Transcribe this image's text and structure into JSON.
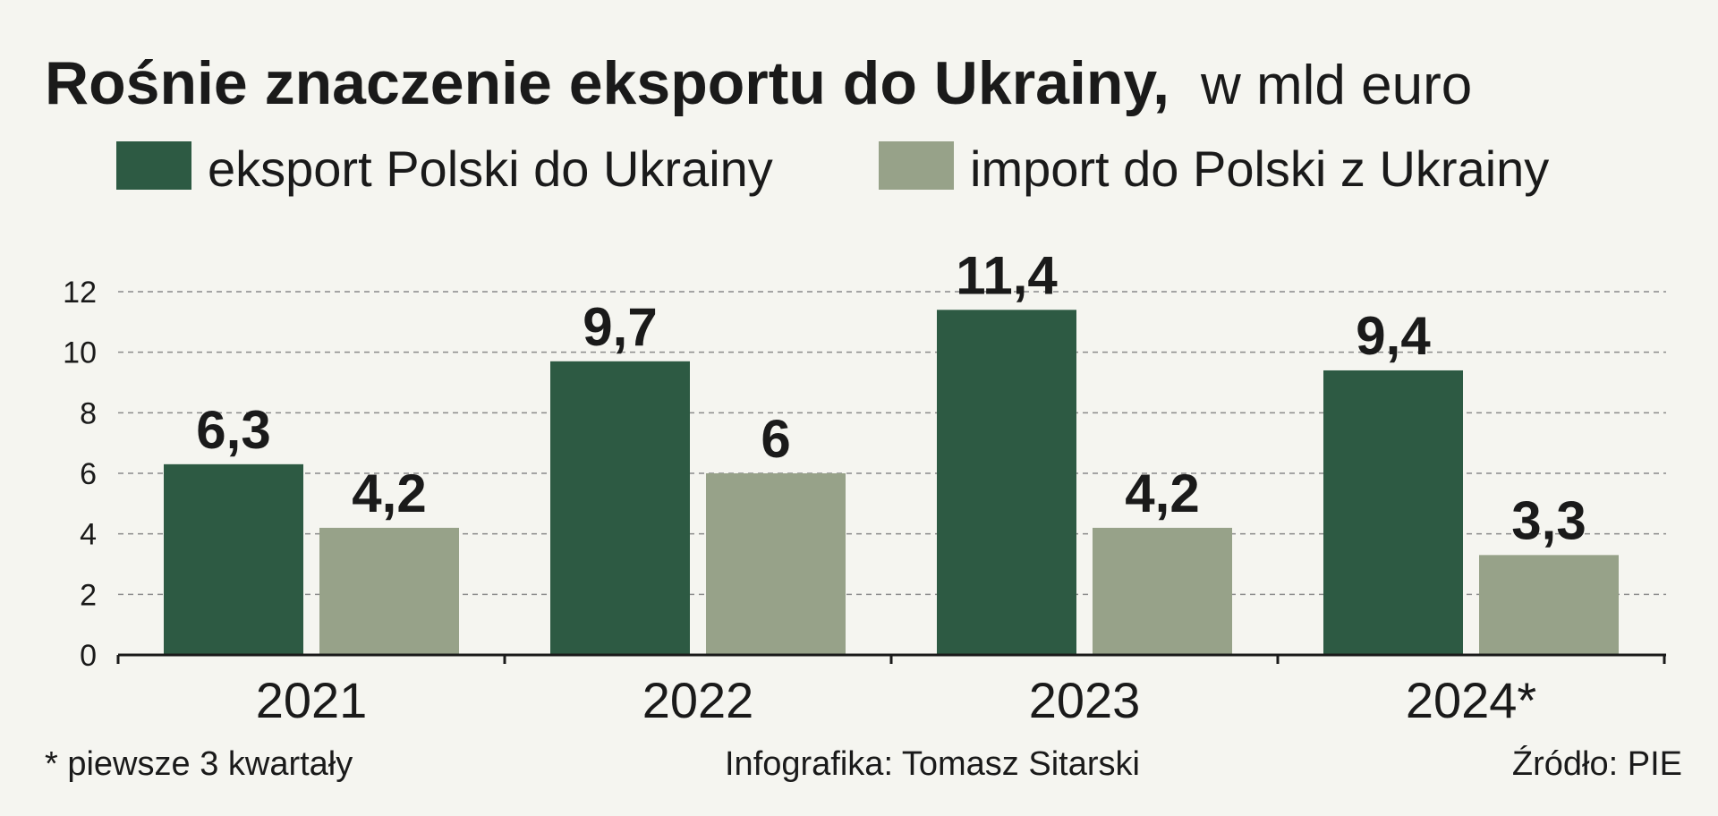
{
  "chart_data": {
    "type": "bar",
    "title": "Rośnie znaczenie eksportu do Ukrainy,",
    "subtitle": "w mld euro",
    "categories": [
      "2021",
      "2022",
      "2023",
      "2024*"
    ],
    "series": [
      {
        "name": "eksport Polski do Ukrainy",
        "color": "#2d5a43",
        "values": [
          6.3,
          9.7,
          11.4,
          9.4
        ],
        "labels": [
          "6,3",
          "9,7",
          "11,4",
          "9,4"
        ]
      },
      {
        "name": "import do Polski z Ukrainy",
        "color": "#97a289",
        "values": [
          4.2,
          6,
          4.2,
          3.3
        ],
        "labels": [
          "4,2",
          "6",
          "4,2",
          "3,3"
        ]
      }
    ],
    "yticks": [
      "0",
      "2",
      "4",
      "6",
      "8",
      "10",
      "12"
    ],
    "ylim": [
      0,
      12
    ],
    "grid": true,
    "legend": "top-left"
  },
  "footer": {
    "note": "* piewsze 3 kwartały",
    "credit": "Infografika: Tomasz Sitarski",
    "source": "Źródło: PIE"
  }
}
